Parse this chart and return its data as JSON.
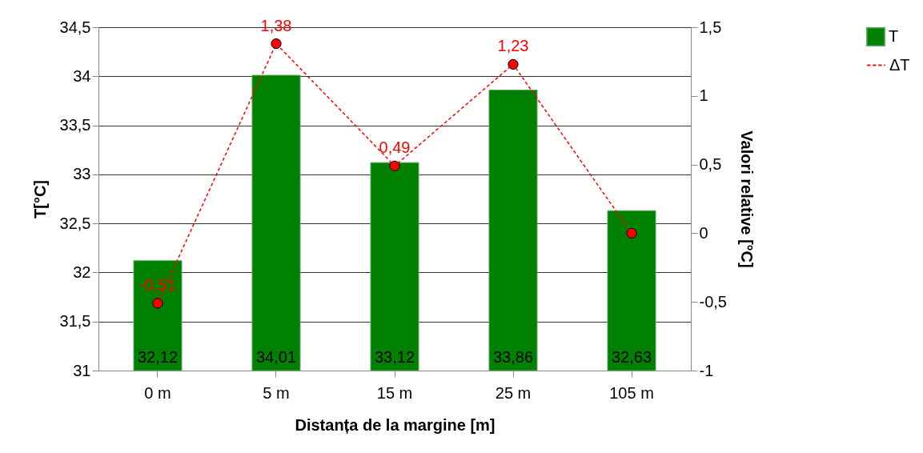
{
  "chart_data": {
    "type": "bar",
    "xlabel": "Distanța de la margine [m]",
    "ylabel": "T[°C]",
    "y2label": "Valori relative [°C]",
    "categories": [
      "0 m",
      "5 m",
      "15 m",
      "25 m",
      "105 m"
    ],
    "series": [
      {
        "name": "T",
        "color": "#008000",
        "values": [
          32.12,
          34.01,
          33.12,
          33.86,
          32.63
        ],
        "value_labels": [
          "32,12",
          "34,01",
          "33,12",
          "33,86",
          "32,63"
        ]
      },
      {
        "name": "ΔT",
        "type": "line",
        "axis": "y2",
        "color": "#ff0000",
        "marker": "circle",
        "line_style": "dashed",
        "values": [
          -0.51,
          1.38,
          0.49,
          1.23,
          0
        ],
        "value_labels": [
          "-0,51",
          "1,38",
          "0,49",
          "1,23",
          null
        ]
      }
    ],
    "ylim": [
      31,
      34.5
    ],
    "yticks": [
      31,
      {
        "value": 31.5,
        "label": "31,5"
      },
      32,
      {
        "value": 32.5,
        "label": "32,5"
      },
      33,
      {
        "value": 33.5,
        "label": "33,5"
      },
      34,
      {
        "value": 34.5,
        "label": "34,5"
      }
    ],
    "y2lim": [
      -1,
      1.5
    ],
    "y2ticks": [
      -1,
      {
        "value": -0.5,
        "label": "-0,5"
      },
      0,
      {
        "value": 0.5,
        "label": "0,5"
      },
      1,
      {
        "value": 1.5,
        "label": "1,5"
      }
    ],
    "grid": "y",
    "legend": "right"
  }
}
